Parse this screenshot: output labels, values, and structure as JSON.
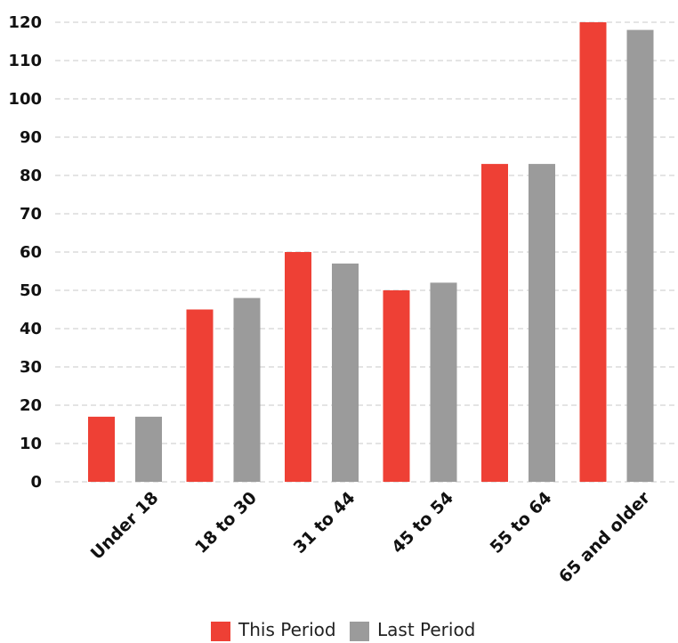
{
  "colors": {
    "this_period": "#ee4035",
    "last_period": "#9b9b9b",
    "grid": "#c8c8c8"
  },
  "chart_data": {
    "type": "bar",
    "title": "",
    "xlabel": "",
    "ylabel": "",
    "categories": [
      "Under 18",
      "18 to 30",
      "31 to 44",
      "45 to 54",
      "55 to 64",
      "65 and older"
    ],
    "series": [
      {
        "name": "This Period",
        "color": "#ee4035",
        "values": [
          17,
          45,
          60,
          50,
          83,
          120
        ]
      },
      {
        "name": "Last Period",
        "color": "#9b9b9b",
        "values": [
          17,
          48,
          57,
          52,
          83,
          118
        ]
      }
    ],
    "ylim": [
      0,
      120
    ],
    "yticks": [
      0,
      10,
      20,
      30,
      40,
      50,
      60,
      70,
      80,
      90,
      100,
      110,
      120
    ],
    "grid": true,
    "legend_position": "bottom-center"
  }
}
